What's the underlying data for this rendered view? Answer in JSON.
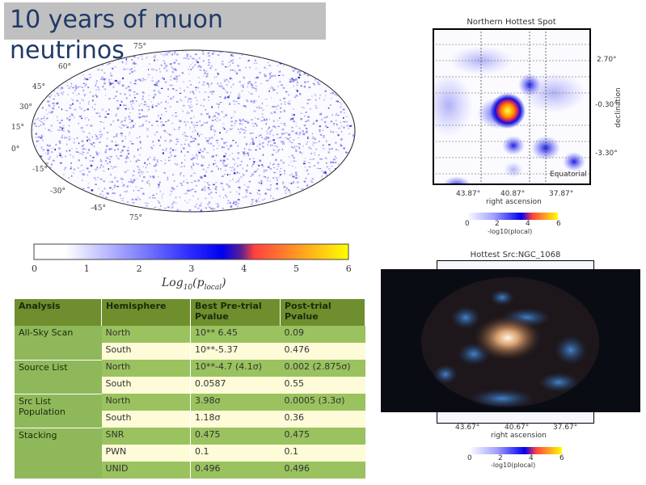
{
  "slide": {
    "title": "10 years of muon neutrinos"
  },
  "skymap": {
    "lat_labels": [
      "75°",
      "60°",
      "45°",
      "30°",
      "15°",
      "0°",
      "-15°",
      "-30°",
      "-45°",
      "60°",
      "75°"
    ],
    "colorbar": {
      "ticks": [
        "0",
        "1",
        "2",
        "3",
        "4",
        "5",
        "6"
      ],
      "label": "Log10(plocal)",
      "label_main": "Log",
      "label_sub": "10",
      "label_p": "(p",
      "label_psub": "local",
      "label_end": ")"
    }
  },
  "table": {
    "headers": [
      "Analysis",
      "Hemisphere",
      "Best Pre-trial Pvalue",
      "Post-trial Pvalue"
    ],
    "rows": [
      {
        "analysis": "All-Sky Scan",
        "hemi": "North",
        "pre": "10** 6.45",
        "post": "0.09"
      },
      {
        "analysis": "",
        "hemi": "South",
        "pre": "10**-5.37",
        "post": "0.476"
      },
      {
        "analysis": "Source List",
        "hemi": "North",
        "pre": "10**-4.7 (4.1σ)",
        "post": "0.002 (2.875σ)"
      },
      {
        "analysis": "",
        "hemi": "South",
        "pre": "0.0587",
        "post": "0.55"
      },
      {
        "analysis": "Src List Population",
        "hemi": "North",
        "pre": "3.98σ",
        "post": "0.0005 (3.3σ)"
      },
      {
        "analysis": "",
        "hemi": "South",
        "pre": "1.18σ",
        "post": "0.36"
      },
      {
        "analysis": "Stacking",
        "hemi": "SNR",
        "pre": "0.475",
        "post": "0.475"
      },
      {
        "analysis": "",
        "hemi": "PWN",
        "pre": "0.1",
        "post": "0.1"
      },
      {
        "analysis": "",
        "hemi": "UNID",
        "pre": "0.496",
        "post": "0.496"
      }
    ]
  },
  "north": {
    "title": "Northern Hottest Spot",
    "dec_ticks": [
      "2.70°",
      "-0.30°",
      "-3.30°"
    ],
    "ylabel": "declination",
    "ra_ticks": [
      "43.87°",
      "40.87°",
      "37.87°"
    ],
    "xlabel": "right ascension",
    "frame_label": "Equatorial",
    "cb_ticks": [
      "0",
      "2",
      "4",
      "6"
    ],
    "cb_label": "-log10(plocal)"
  },
  "ngc": {
    "title": "Hottest Src:NGC_1068",
    "ra_ticks": [
      "43.67°",
      "40.67°",
      "37.67°"
    ],
    "xlabel": "right ascension",
    "cb_ticks": [
      "0",
      "2",
      "4",
      "6"
    ],
    "cb_label": "-log10(plocal)"
  },
  "colors": {
    "header": "#6f8e2e",
    "row_green": "#9ac25f",
    "row_light": "#fdfbd8",
    "title": "#1f3a68"
  }
}
